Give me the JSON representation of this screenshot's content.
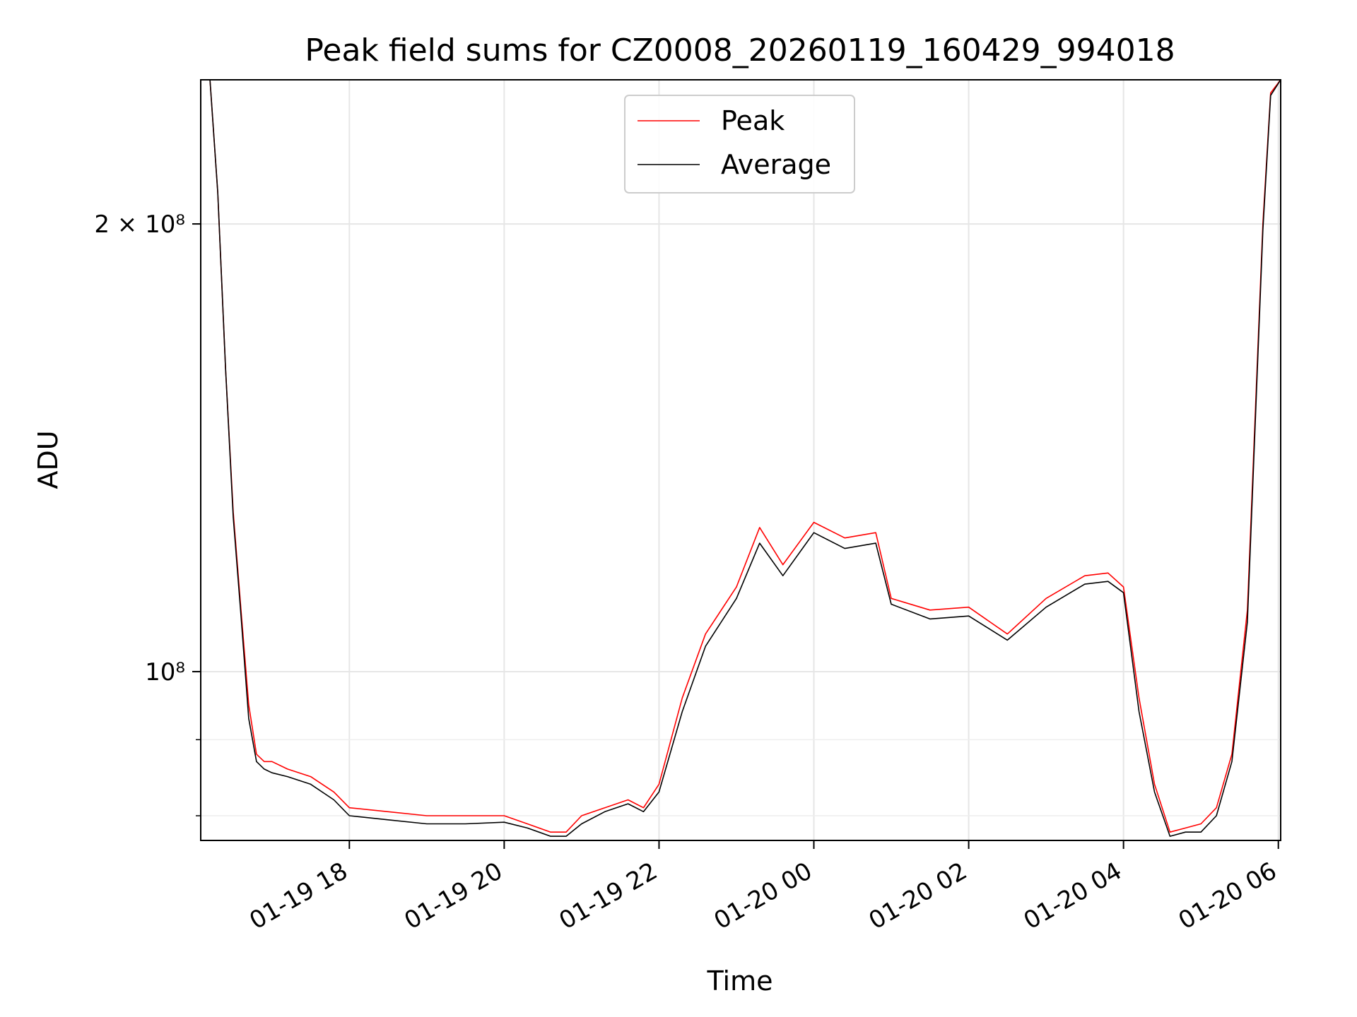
{
  "chart_data": {
    "type": "line",
    "title": "Peak field sums for CZ0008_20260119_160429_994018",
    "xlabel": "Time",
    "ylabel": "ADU",
    "yscale": "log",
    "ylim": [
      77000000,
      250000000
    ],
    "xlim_hours": [
      16.08,
      30.03
    ],
    "grid": true,
    "legend_position": "upper center",
    "x_ticks": [
      {
        "hour": 18,
        "label": "01-19 18"
      },
      {
        "hour": 20,
        "label": "01-19 20"
      },
      {
        "hour": 22,
        "label": "01-19 22"
      },
      {
        "hour": 24,
        "label": "01-20 00"
      },
      {
        "hour": 26,
        "label": "01-20 02"
      },
      {
        "hour": 28,
        "label": "01-20 04"
      },
      {
        "hour": 30,
        "label": "01-20 06"
      }
    ],
    "y_ticks": [
      {
        "value": 200000000,
        "label": "2 × 10⁸"
      },
      {
        "value": 100000000,
        "label": "10⁸"
      }
    ],
    "y_minor_ticks": [
      80000000,
      90000000
    ],
    "series": [
      {
        "name": "Peak",
        "color": "#ff0000",
        "x_hours": [
          16.08,
          16.2,
          16.3,
          16.4,
          16.5,
          16.6,
          16.7,
          16.8,
          16.9,
          17.0,
          17.2,
          17.5,
          17.8,
          18.0,
          18.5,
          19.0,
          19.5,
          20.0,
          20.3,
          20.6,
          20.8,
          21.0,
          21.3,
          21.6,
          21.8,
          22.0,
          22.3,
          22.6,
          23.0,
          23.3,
          23.6,
          24.0,
          24.4,
          24.8,
          25.0,
          25.5,
          26.0,
          26.5,
          27.0,
          27.5,
          27.8,
          28.0,
          28.2,
          28.4,
          28.6,
          28.8,
          29.0,
          29.2,
          29.4,
          29.6,
          29.8,
          29.9,
          30.03
        ],
        "values": [
          250000000,
          250000000,
          210000000,
          160000000,
          128000000,
          110000000,
          95000000,
          88000000,
          87000000,
          87000000,
          86000000,
          85000000,
          83000000,
          81000000,
          80500000,
          80000000,
          80000000,
          80000000,
          79000000,
          78000000,
          78000000,
          80000000,
          81000000,
          82000000,
          81000000,
          84000000,
          96000000,
          106000000,
          114000000,
          125000000,
          118000000,
          126000000,
          123000000,
          124000000,
          112000000,
          110000000,
          110500000,
          106000000,
          112000000,
          116000000,
          116500000,
          114000000,
          96000000,
          84000000,
          78000000,
          78500000,
          79000000,
          81000000,
          88000000,
          110000000,
          200000000,
          245000000,
          250000000
        ]
      },
      {
        "name": "Average",
        "color": "#000000",
        "x_hours": [
          16.08,
          16.2,
          16.3,
          16.4,
          16.5,
          16.6,
          16.7,
          16.8,
          16.9,
          17.0,
          17.2,
          17.5,
          17.8,
          18.0,
          18.5,
          19.0,
          19.5,
          20.0,
          20.3,
          20.6,
          20.8,
          21.0,
          21.3,
          21.6,
          21.8,
          22.0,
          22.3,
          22.6,
          23.0,
          23.3,
          23.6,
          24.0,
          24.4,
          24.8,
          25.0,
          25.5,
          26.0,
          26.5,
          27.0,
          27.5,
          27.8,
          28.0,
          28.2,
          28.4,
          28.6,
          28.8,
          29.0,
          29.2,
          29.4,
          29.6,
          29.8,
          29.9,
          30.03
        ],
        "values": [
          250000000,
          250000000,
          210000000,
          160000000,
          127000000,
          109000000,
          93000000,
          87000000,
          86000000,
          85500000,
          85000000,
          84000000,
          82000000,
          80000000,
          79500000,
          79000000,
          79000000,
          79200000,
          78500000,
          77500000,
          77500000,
          79000000,
          80500000,
          81500000,
          80500000,
          83000000,
          94000000,
          104000000,
          112000000,
          122000000,
          116000000,
          124000000,
          121000000,
          122000000,
          111000000,
          108500000,
          109000000,
          105000000,
          110500000,
          114500000,
          115000000,
          113000000,
          94000000,
          83000000,
          77500000,
          78000000,
          78000000,
          80000000,
          87000000,
          108000000,
          198000000,
          244000000,
          250000000
        ]
      }
    ]
  }
}
